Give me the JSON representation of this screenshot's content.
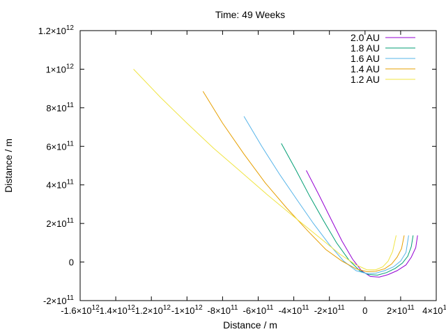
{
  "chart_data": {
    "type": "line",
    "title": "Time: 49 Weeks",
    "xlabel": "Distance / m",
    "ylabel": "Distance / m",
    "xlim": [
      -1600000000000.0,
      400000000000.0
    ],
    "ylim": [
      -200000000000.0,
      1200000000000.0
    ],
    "grid": false,
    "legend_position": "top-right",
    "x_ticks": [
      {
        "value": -1600000000000.0,
        "mant": "-1.6×10",
        "exp": "12"
      },
      {
        "value": -1400000000000.0,
        "mant": "-1.4×10",
        "exp": "12"
      },
      {
        "value": -1200000000000.0,
        "mant": "-1.2×10",
        "exp": "12"
      },
      {
        "value": -1000000000000.0,
        "mant": "-1×10",
        "exp": "12"
      },
      {
        "value": -800000000000.0,
        "mant": "-8×10",
        "exp": "11"
      },
      {
        "value": -600000000000.0,
        "mant": "-6×10",
        "exp": "11"
      },
      {
        "value": -400000000000.0,
        "mant": "-4×10",
        "exp": "11"
      },
      {
        "value": -200000000000.0,
        "mant": "-2×10",
        "exp": "11"
      },
      {
        "value": 0,
        "mant": "0",
        "exp": ""
      },
      {
        "value": 200000000000.0,
        "mant": "2×10",
        "exp": "11"
      },
      {
        "value": 400000000000.0,
        "mant": "4×10",
        "exp": "11"
      }
    ],
    "y_ticks": [
      {
        "value": -200000000000.0,
        "mant": "-2×10",
        "exp": "11"
      },
      {
        "value": 0,
        "mant": "0",
        "exp": ""
      },
      {
        "value": 200000000000.0,
        "mant": "2×10",
        "exp": "11"
      },
      {
        "value": 400000000000.0,
        "mant": "4×10",
        "exp": "11"
      },
      {
        "value": 600000000000.0,
        "mant": "6×10",
        "exp": "11"
      },
      {
        "value": 800000000000.0,
        "mant": "8×10",
        "exp": "11"
      },
      {
        "value": 1000000000000.0,
        "mant": "1×10",
        "exp": "12"
      },
      {
        "value": 1200000000000.0,
        "mant": "1.2×10",
        "exp": "12"
      }
    ],
    "series": [
      {
        "name": "2.0 AU",
        "color": "#9400d3",
        "x": [
          -330000000000.0,
          -260000000000.0,
          -190000000000.0,
          -130000000000.0,
          -70000000000.0,
          -20000000000.0,
          30000000000.0,
          80000000000.0,
          130000000000.0,
          180000000000.0,
          230000000000.0,
          260000000000.0,
          285000000000.0,
          295000000000.0
        ],
        "y": [
          475000000000.0,
          350000000000.0,
          220000000000.0,
          110000000000.0,
          15000000000.0,
          -45000000000.0,
          -75000000000.0,
          -78000000000.0,
          -65000000000.0,
          -45000000000.0,
          -15000000000.0,
          25000000000.0,
          75000000000.0,
          138000000000.0
        ]
      },
      {
        "name": "1.8 AU",
        "color": "#009e73",
        "x": [
          -470000000000.0,
          -390000000000.0,
          -310000000000.0,
          -230000000000.0,
          -160000000000.0,
          -90000000000.0,
          -30000000000.0,
          20000000000.0,
          70000000000.0,
          120000000000.0,
          170000000000.0,
          210000000000.0,
          240000000000.0,
          260000000000.0,
          270000000000.0
        ],
        "y": [
          615000000000.0,
          480000000000.0,
          340000000000.0,
          210000000000.0,
          100000000000.0,
          10000000000.0,
          -45000000000.0,
          -65000000000.0,
          -68000000000.0,
          -55000000000.0,
          -33000000000.0,
          -5000000000.0,
          30000000000.0,
          80000000000.0,
          138000000000.0
        ]
      },
      {
        "name": "1.6 AU",
        "color": "#56b4e9",
        "x": [
          -680000000000.0,
          -580000000000.0,
          -480000000000.0,
          -380000000000.0,
          -290000000000.0,
          -200000000000.0,
          -120000000000.0,
          -50000000000.0,
          10000000000.0,
          60000000000.0,
          110000000000.0,
          160000000000.0,
          200000000000.0,
          230000000000.0,
          245000000000.0
        ],
        "y": [
          755000000000.0,
          600000000000.0,
          455000000000.0,
          320000000000.0,
          200000000000.0,
          90000000000.0,
          5000000000.0,
          -45000000000.0,
          -60000000000.0,
          -58000000000.0,
          -45000000000.0,
          -25000000000.0,
          5000000000.0,
          50000000000.0,
          138000000000.0
        ]
      },
      {
        "name": "1.4 AU",
        "color": "#e69f00",
        "x": [
          -910000000000.0,
          -800000000000.0,
          -680000000000.0,
          -560000000000.0,
          -440000000000.0,
          -320000000000.0,
          -220000000000.0,
          -130000000000.0,
          -50000000000.0,
          10000000000.0,
          60000000000.0,
          110000000000.0,
          150000000000.0,
          180000000000.0,
          205000000000.0,
          220000000000.0
        ],
        "y": [
          885000000000.0,
          720000000000.0,
          560000000000.0,
          410000000000.0,
          280000000000.0,
          160000000000.0,
          65000000000.0,
          5000000000.0,
          -35000000000.0,
          -50000000000.0,
          -48000000000.0,
          -35000000000.0,
          -10000000000.0,
          25000000000.0,
          70000000000.0,
          138000000000.0
        ]
      },
      {
        "name": "1.2 AU",
        "color": "#f0e442",
        "x": [
          -1300000000000.0,
          -1150000000000.0,
          -1000000000000.0,
          -850000000000.0,
          -700000000000.0,
          -550000000000.0,
          -400000000000.0,
          -260000000000.0,
          -140000000000.0,
          -50000000000.0,
          10000000000.0,
          60000000000.0,
          100000000000.0,
          130000000000.0,
          155000000000.0,
          175000000000.0
        ],
        "y": [
          1000000000000.0,
          855000000000.0,
          720000000000.0,
          590000000000.0,
          470000000000.0,
          350000000000.0,
          235000000000.0,
          130000000000.0,
          40000000000.0,
          -15000000000.0,
          -40000000000.0,
          -40000000000.0,
          -25000000000.0,
          5000000000.0,
          55000000000.0,
          138000000000.0
        ]
      }
    ]
  }
}
